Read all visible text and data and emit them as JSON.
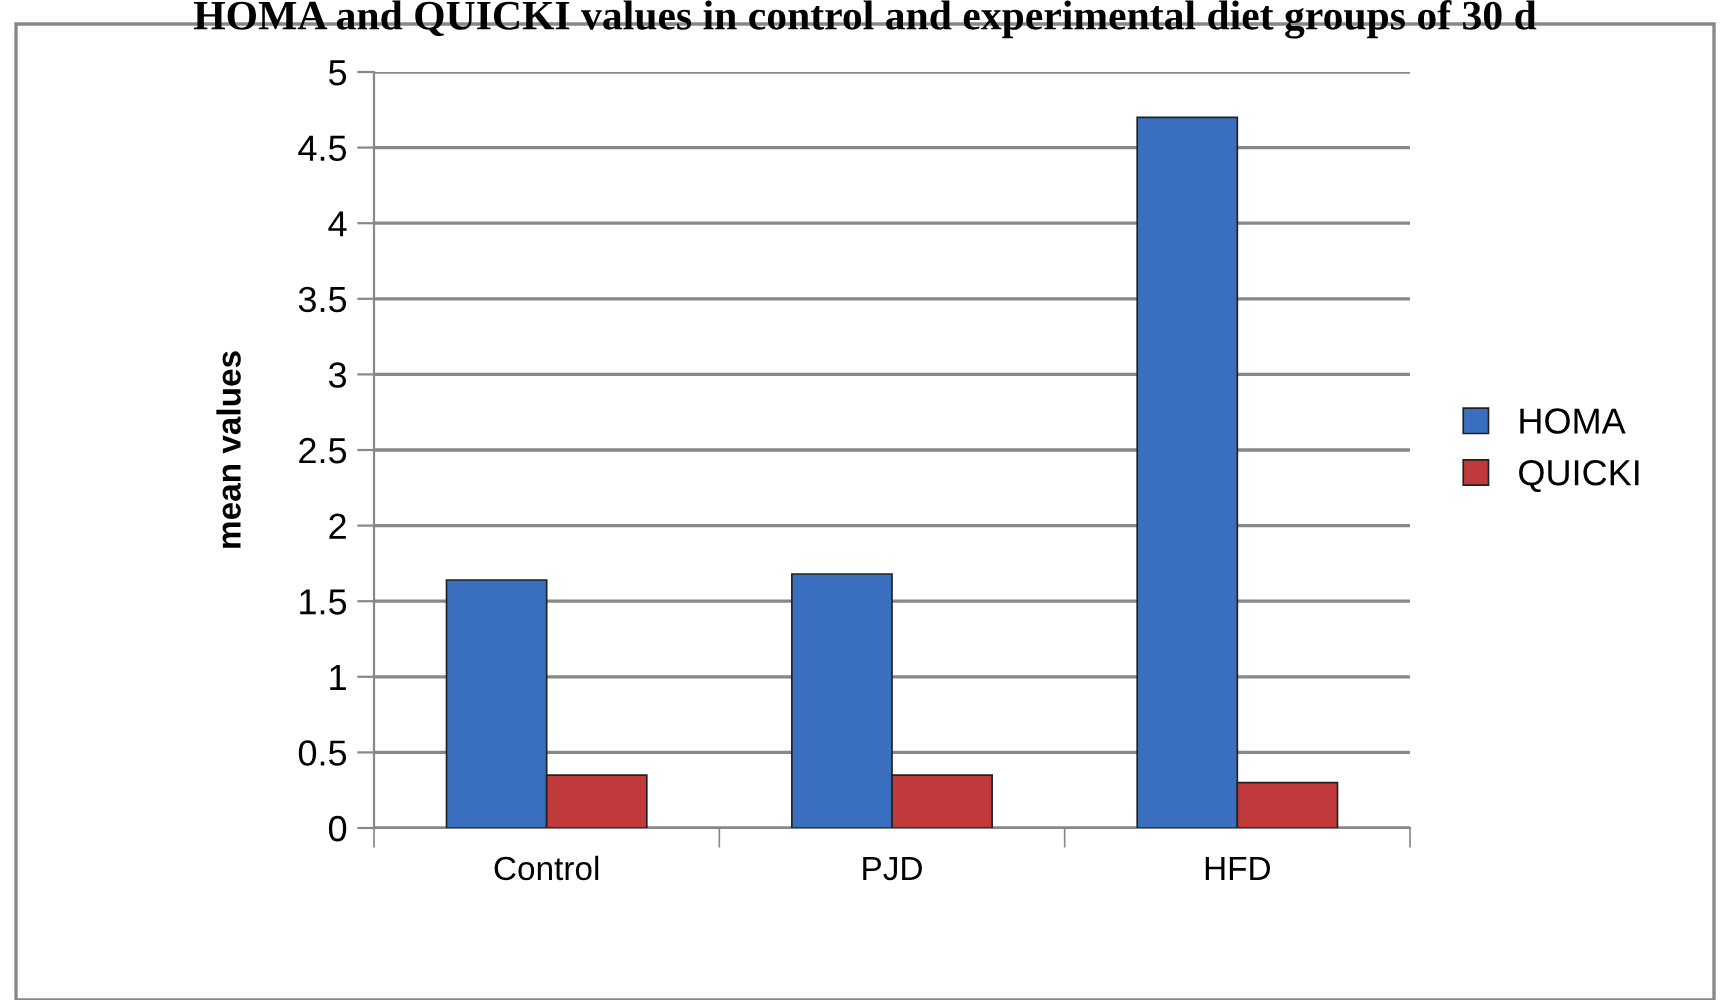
{
  "chart_data": {
    "type": "bar",
    "title": "HOMA and QUICKI values in control and experimental diet groups of 30 d",
    "ylabel": "mean values",
    "categories": [
      "Control",
      "PJD",
      "HFD"
    ],
    "series": [
      {
        "name": "HOMA",
        "color": "#3a6fbf",
        "values": [
          1.64,
          1.68,
          4.7
        ]
      },
      {
        "name": "QUICKI",
        "color": "#c0393b",
        "values": [
          0.35,
          0.35,
          0.3
        ]
      }
    ],
    "ylim": [
      0,
      5
    ],
    "yticks": [
      0,
      0.5,
      1,
      1.5,
      2,
      2.5,
      3,
      3.5,
      4,
      4.5,
      5
    ],
    "grid": "y",
    "legend": "right"
  }
}
